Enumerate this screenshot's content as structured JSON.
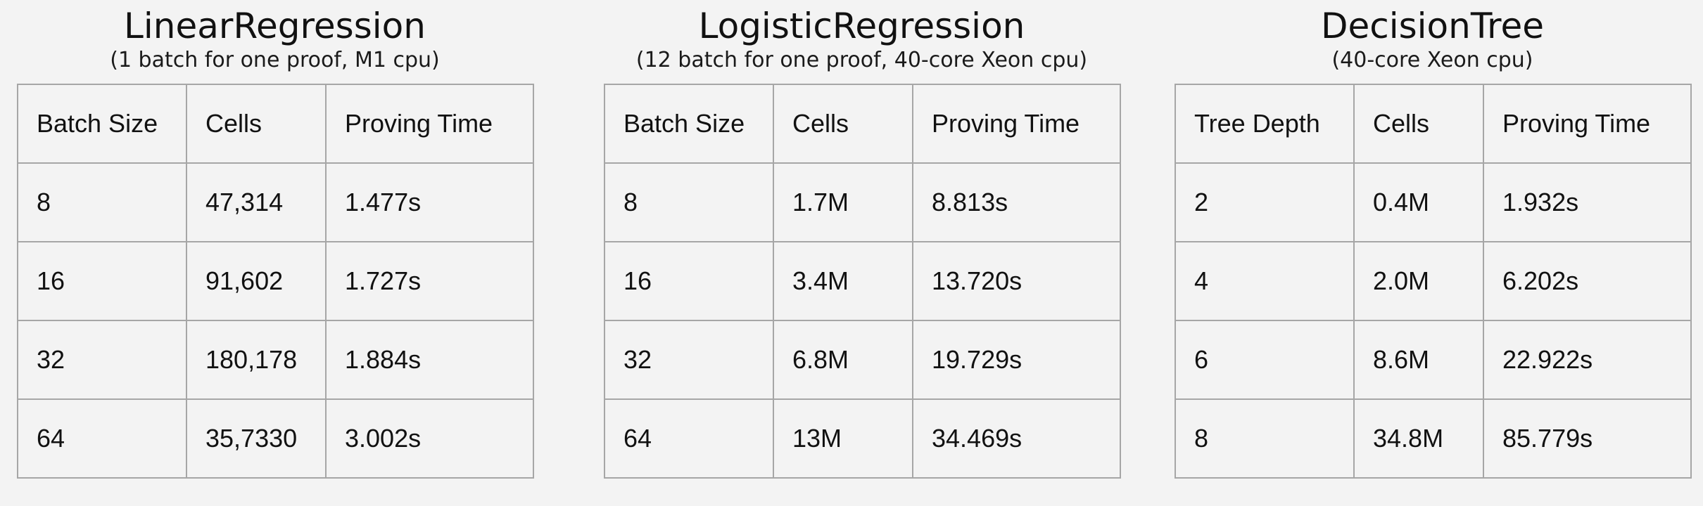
{
  "tables": [
    {
      "title": "LinearRegression",
      "subtitle": "(1 batch for one proof, M1 cpu)",
      "headers": [
        "Batch Size",
        "Cells",
        "Proving Time"
      ],
      "rows": [
        [
          "8",
          "47,314",
          "1.477s"
        ],
        [
          "16",
          "91,602",
          "1.727s"
        ],
        [
          "32",
          "180,178",
          "1.884s"
        ],
        [
          "64",
          "35,7330",
          "3.002s"
        ]
      ]
    },
    {
      "title": "LogisticRegression",
      "subtitle": "(12 batch for one proof, 40-core Xeon cpu)",
      "headers": [
        "Batch Size",
        "Cells",
        "Proving Time"
      ],
      "rows": [
        [
          "8",
          "1.7M",
          "8.813s"
        ],
        [
          "16",
          "3.4M",
          "13.720s"
        ],
        [
          "32",
          "6.8M",
          "19.729s"
        ],
        [
          "64",
          "13M",
          "34.469s"
        ]
      ]
    },
    {
      "title": "DecisionTree",
      "subtitle": "(40-core Xeon cpu)",
      "headers": [
        "Tree Depth",
        "Cells",
        "Proving Time"
      ],
      "rows": [
        [
          "2",
          "0.4M",
          "1.932s"
        ],
        [
          "4",
          "2.0M",
          "6.202s"
        ],
        [
          "6",
          "8.6M",
          "22.922s"
        ],
        [
          "8",
          "34.8M",
          "85.779s"
        ]
      ]
    }
  ]
}
